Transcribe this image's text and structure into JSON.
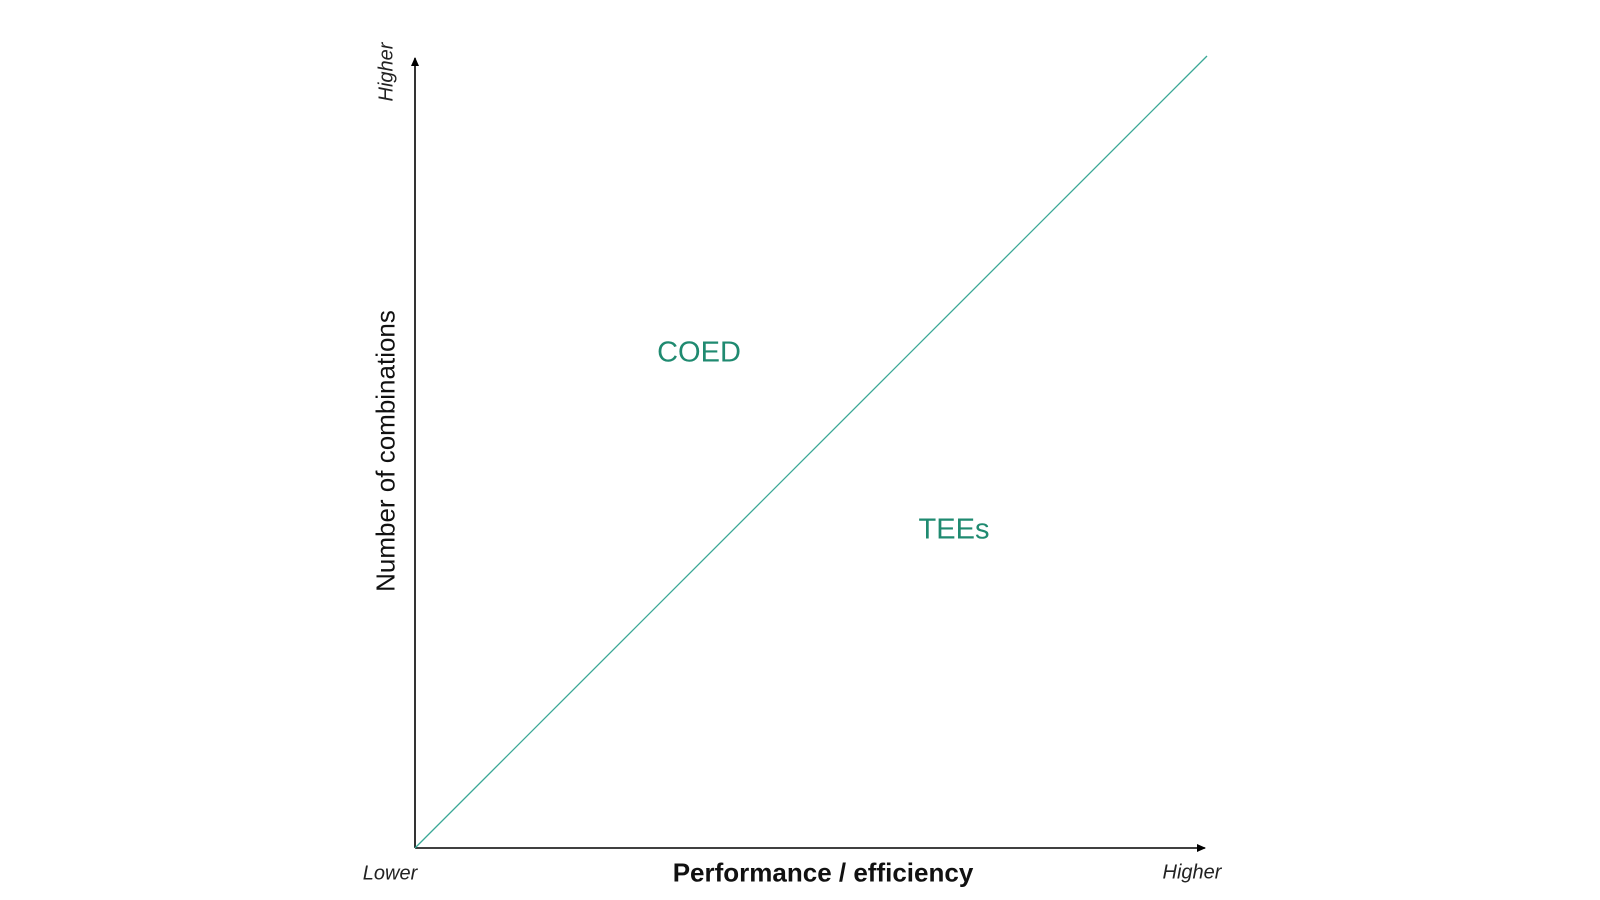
{
  "axes": {
    "x_title": "Performance / efficiency",
    "y_title": "Number of combinations",
    "x_low_label": "Lower",
    "x_high_label": "Higher",
    "y_high_label": "Higher"
  },
  "regions": {
    "upper_left": "COED",
    "lower_right": "TEEs"
  },
  "colors": {
    "accent": "#1f8a70",
    "diagonal": "#3aa896",
    "axes": "#000000"
  }
}
